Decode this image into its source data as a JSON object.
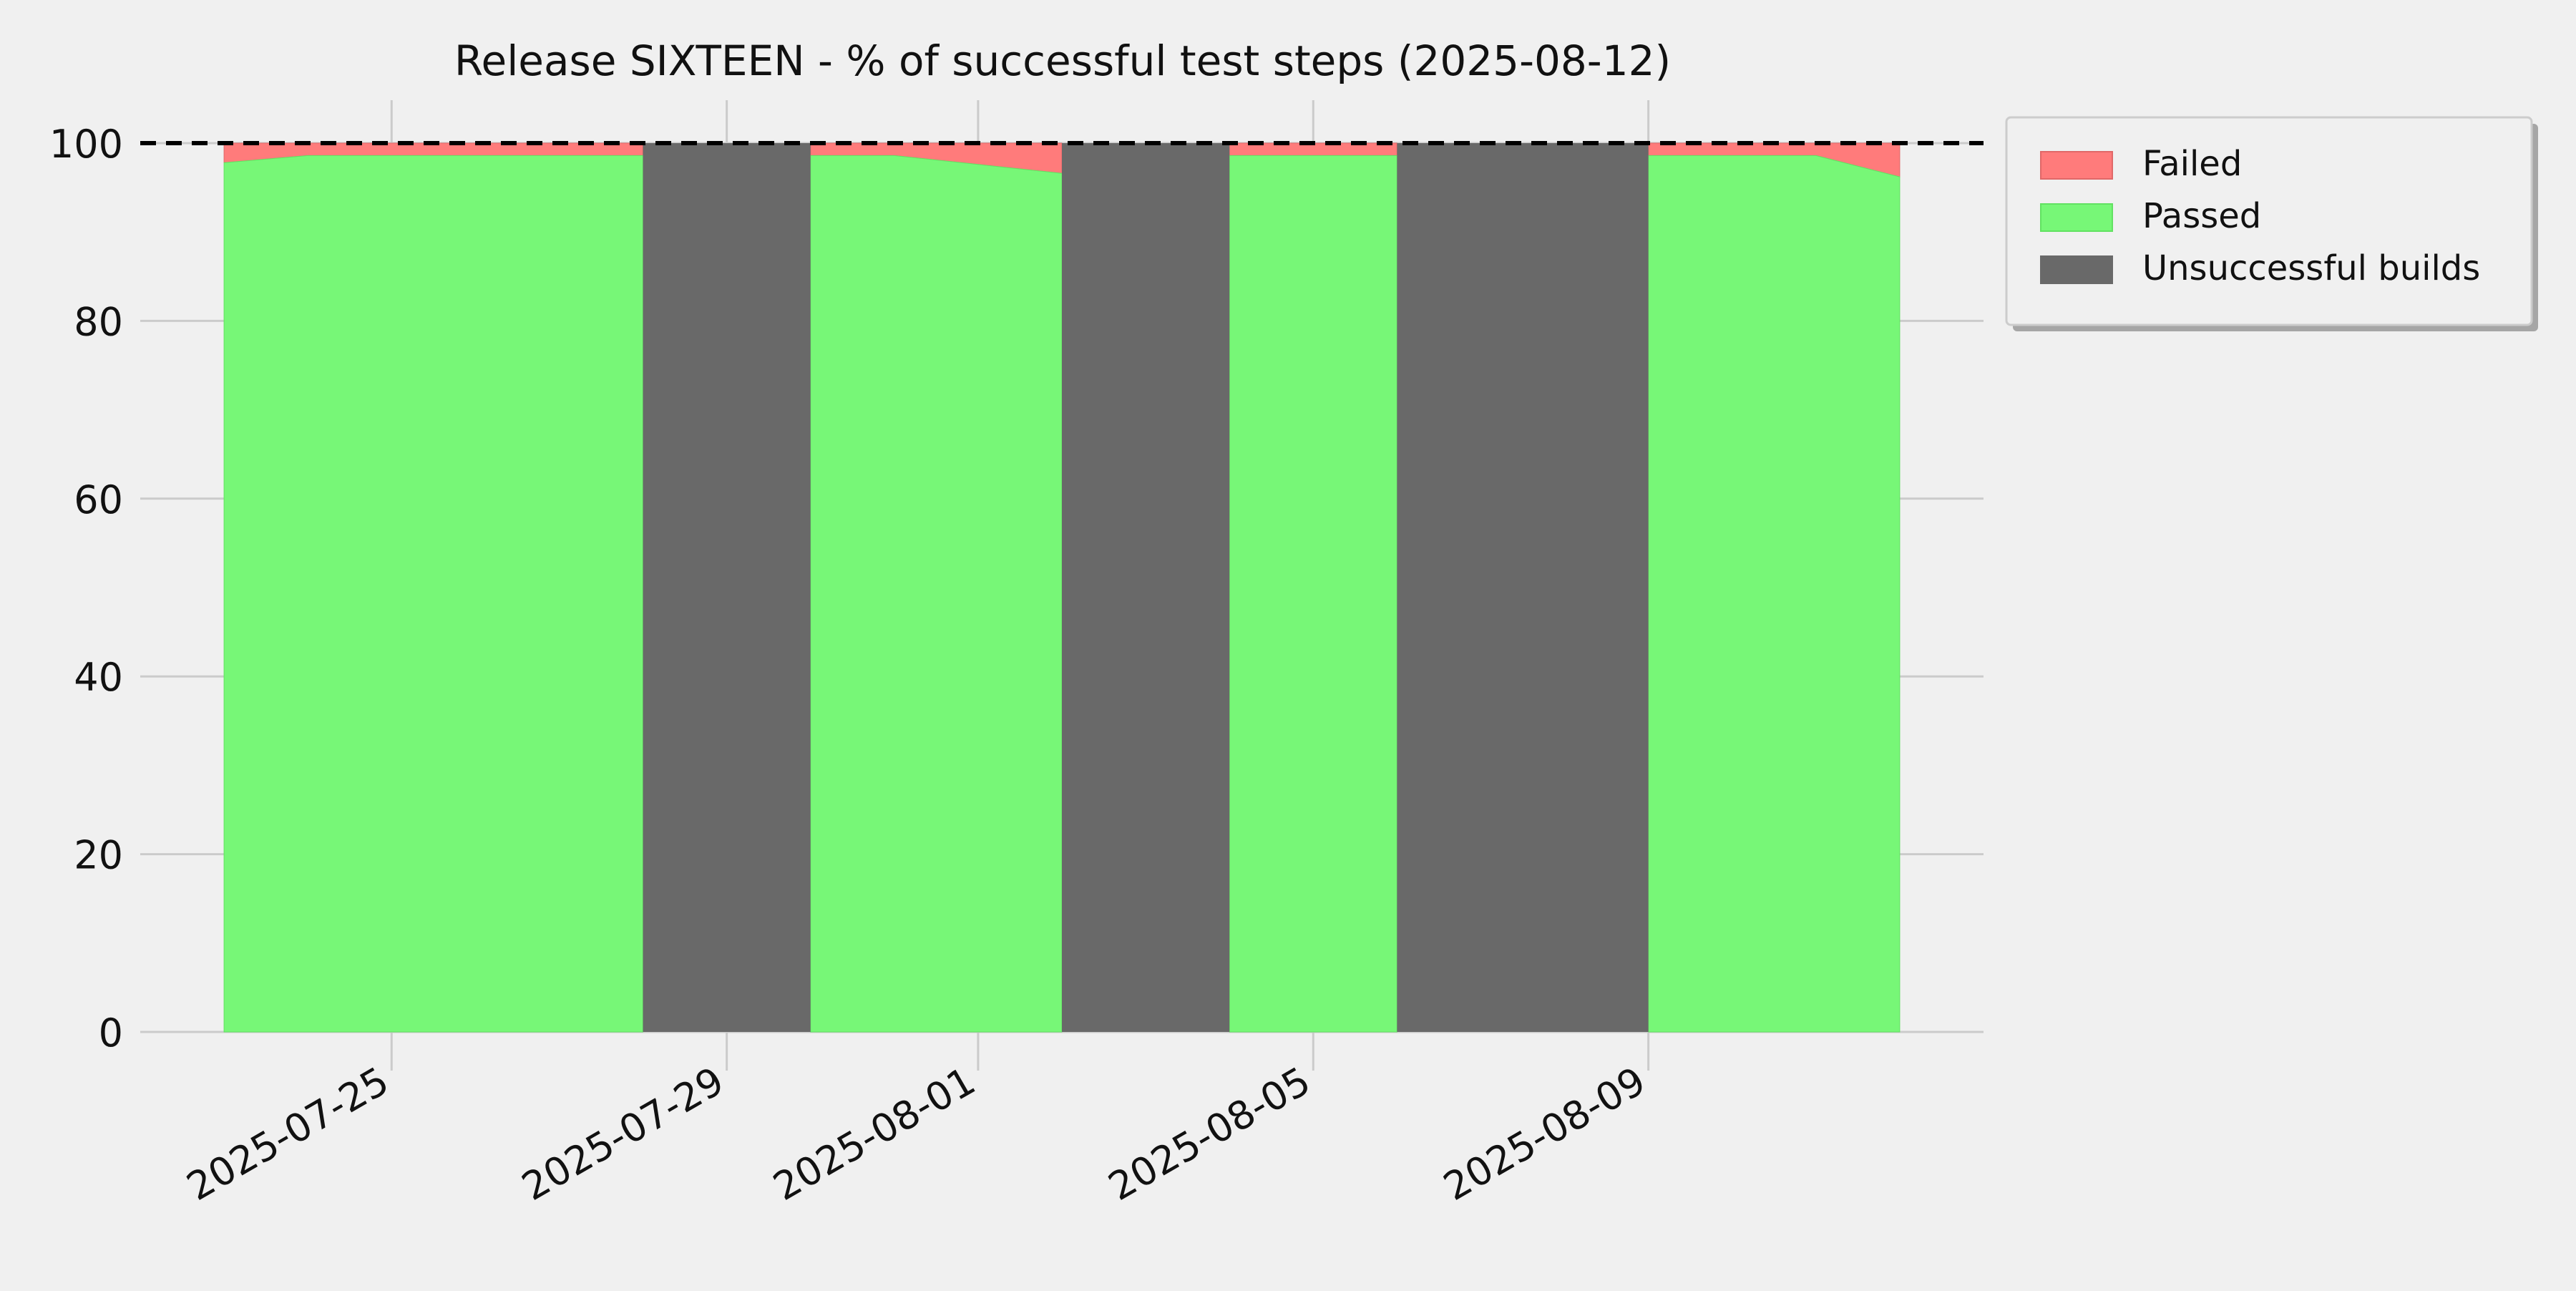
{
  "chart_data": {
    "type": "area",
    "title": "Release SIXTEEN - % of successful test steps (2025-08-12)",
    "xlabel": "",
    "ylabel": "",
    "x_type": "date",
    "xlim": [
      "2025-07-22",
      "2025-08-13"
    ],
    "ylim": [
      0,
      100
    ],
    "yticks": [
      0,
      20,
      40,
      60,
      80,
      100
    ],
    "xticks": [
      "2025-07-25",
      "2025-07-29",
      "2025-08-01",
      "2025-08-05",
      "2025-08-09"
    ],
    "grid": true,
    "legend_position": "upper-right-outside",
    "reference_line": {
      "y": 100,
      "style": "dashed",
      "color": "#000000"
    },
    "series": [
      {
        "name": "Passed",
        "color": "#77f777",
        "segments": [
          [
            [
              "2025-07-23",
              97.8
            ],
            [
              "2025-07-24",
              98.6
            ],
            [
              "2025-07-25",
              98.6
            ],
            [
              "2025-07-26",
              98.6
            ],
            [
              "2025-07-27",
              98.6
            ],
            [
              "2025-07-28",
              98.6
            ]
          ],
          [
            [
              "2025-07-30",
              98.6
            ],
            [
              "2025-07-31",
              98.6
            ],
            [
              "2025-08-01",
              97.6
            ],
            [
              "2025-08-02",
              96.6
            ]
          ],
          [
            [
              "2025-08-04",
              98.6
            ],
            [
              "2025-08-06",
              98.6
            ]
          ],
          [
            [
              "2025-08-09",
              98.6
            ],
            [
              "2025-08-10",
              98.6
            ],
            [
              "2025-08-11",
              98.6
            ],
            [
              "2025-08-12",
              96.2
            ]
          ]
        ]
      },
      {
        "name": "Failed",
        "color": "#ff7b7b",
        "note_stack": "stacked on top of Passed up to 100"
      },
      {
        "name": "Unsuccessful builds",
        "color": "#696969",
        "ranges": [
          [
            "2025-07-28",
            "2025-07-30"
          ],
          [
            "2025-08-02",
            "2025-08-04"
          ],
          [
            "2025-08-06",
            "2025-08-09"
          ]
        ]
      }
    ]
  }
}
